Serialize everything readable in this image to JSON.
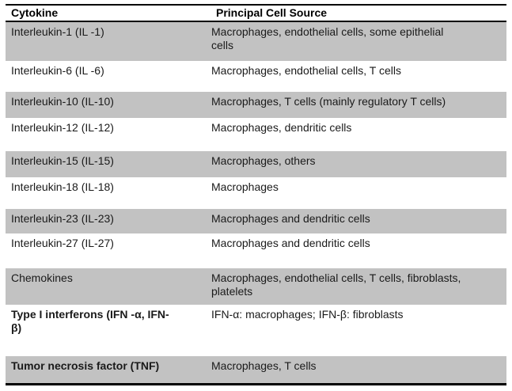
{
  "table": {
    "columns": [
      {
        "label": "Cytokine"
      },
      {
        "label": "Principal Cell Source"
      }
    ],
    "rows": [
      {
        "cytokine": "Interleukin-1 (IL -1)",
        "source": "Macrophages, endothelial cells, some epithelial\ncells",
        "shaded": true,
        "bold": false
      },
      {
        "cytokine": "Interleukin-6 (IL -6)",
        "source": "Macrophages, endothelial cells, T cells",
        "shaded": false,
        "bold": false
      },
      {
        "cytokine": "Interleukin-10 (IL-10)",
        "source": "Macrophages, T cells (mainly regulatory T cells)",
        "shaded": true,
        "bold": false
      },
      {
        "cytokine": "Interleukin-12 (IL-12)",
        "source": "Macrophages, dendritic cells",
        "shaded": false,
        "bold": false
      },
      {
        "cytokine": "Interleukin-15 (IL-15)",
        "source": "Macrophages, others",
        "shaded": true,
        "bold": false
      },
      {
        "cytokine": "Interleukin-18 (IL-18)",
        "source": "Macrophages",
        "shaded": false,
        "bold": false
      },
      {
        "cytokine": "Interleukin-23 (IL-23)",
        "source": "Macrophages and dendritic cells",
        "shaded": true,
        "bold": false
      },
      {
        "cytokine": "Interleukin-27 (IL-27)",
        "source": "Macrophages and dendritic cells",
        "shaded": false,
        "bold": false
      },
      {
        "cytokine": "Chemokines",
        "source": "Macrophages, endothelial cells, T cells, fibroblasts,\nplatelets",
        "shaded": true,
        "bold": false
      },
      {
        "cytokine": "Type I interferons (IFN -α, IFN-\nβ)",
        "source": "IFN-α: macrophages; IFN-β: fibroblasts",
        "shaded": false,
        "bold": true
      },
      {
        "cytokine": "Tumor necrosis factor (TNF)",
        "source": "Macrophages, T cells",
        "shaded": true,
        "bold": true
      }
    ],
    "colors": {
      "shaded_row": "#c2c2c2",
      "rule": "#000000",
      "text": "#1a1a1a"
    }
  }
}
